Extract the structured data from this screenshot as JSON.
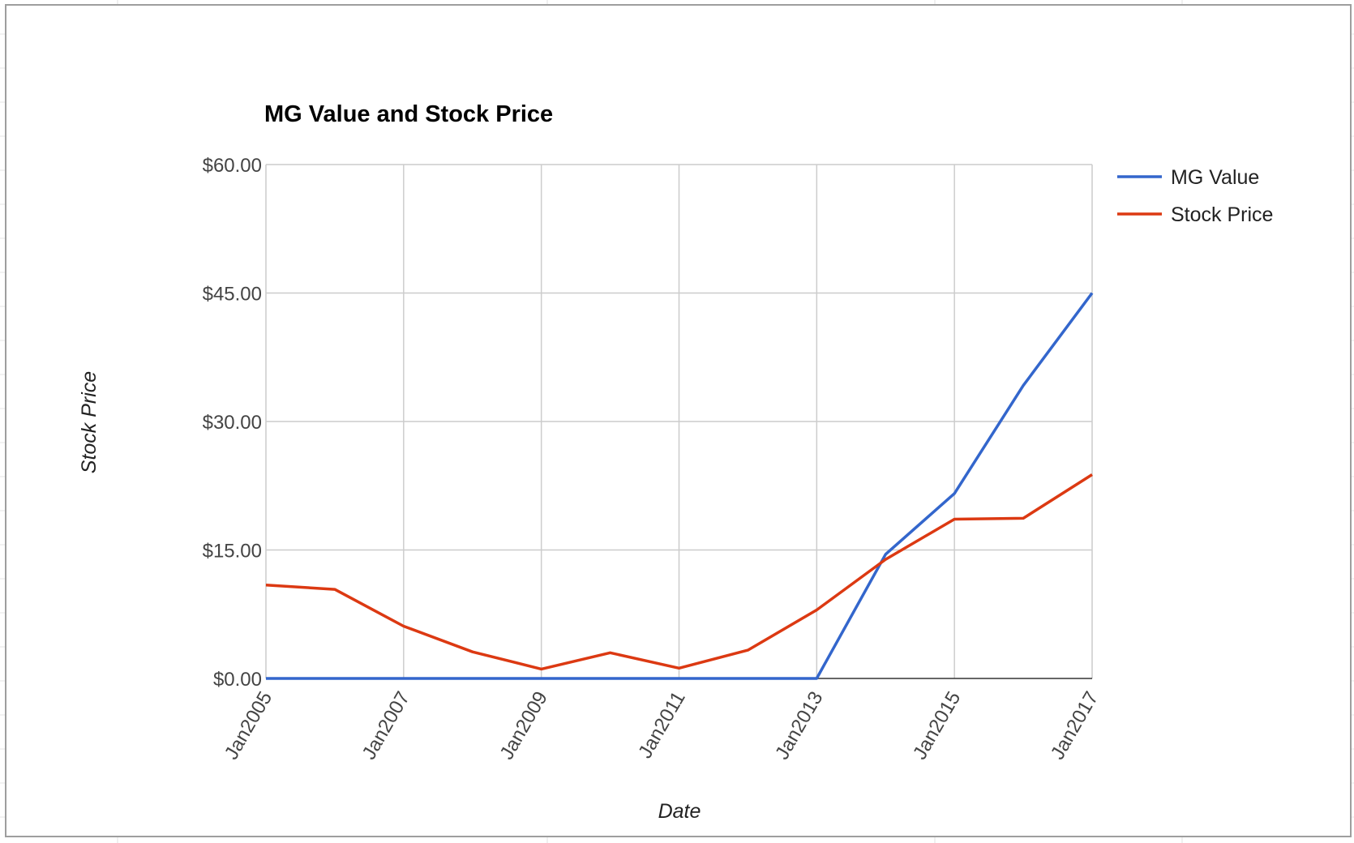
{
  "chart_data": {
    "type": "line",
    "title": "MG Value and Stock Price",
    "xlabel": "Date",
    "ylabel": "Stock Price",
    "x": [
      "2005-01",
      "2006-01",
      "2007-01",
      "2008-01",
      "2009-01",
      "2010-01",
      "2011-01",
      "2012-01",
      "2013-01",
      "2014-01",
      "2015-01",
      "2016-01",
      "2017-01"
    ],
    "x_tick_labels": [
      "Jan2005",
      "Jan2007",
      "Jan2009",
      "Jan2011",
      "Jan2013",
      "Jan2015",
      "Jan2017"
    ],
    "y_tick_labels": [
      "$0.00",
      "$15.00",
      "$30.00",
      "$45.00",
      "$60.00"
    ],
    "y_ticks": [
      0,
      15,
      30,
      45,
      60
    ],
    "ylim": [
      0,
      60
    ],
    "grid": true,
    "legend_position": "right-top",
    "series": [
      {
        "name": "MG Value",
        "color": "#3366cc",
        "values": [
          0,
          0,
          0,
          0,
          0,
          0,
          0,
          0,
          0,
          14.5,
          21.6,
          34.2,
          45
        ]
      },
      {
        "name": "Stock Price",
        "color": "#dc3912",
        "values": [
          10.9,
          10.4,
          6.1,
          3.1,
          1.1,
          3.0,
          1.2,
          3.3,
          8.0,
          13.9,
          18.6,
          18.7,
          23.8
        ]
      }
    ]
  }
}
